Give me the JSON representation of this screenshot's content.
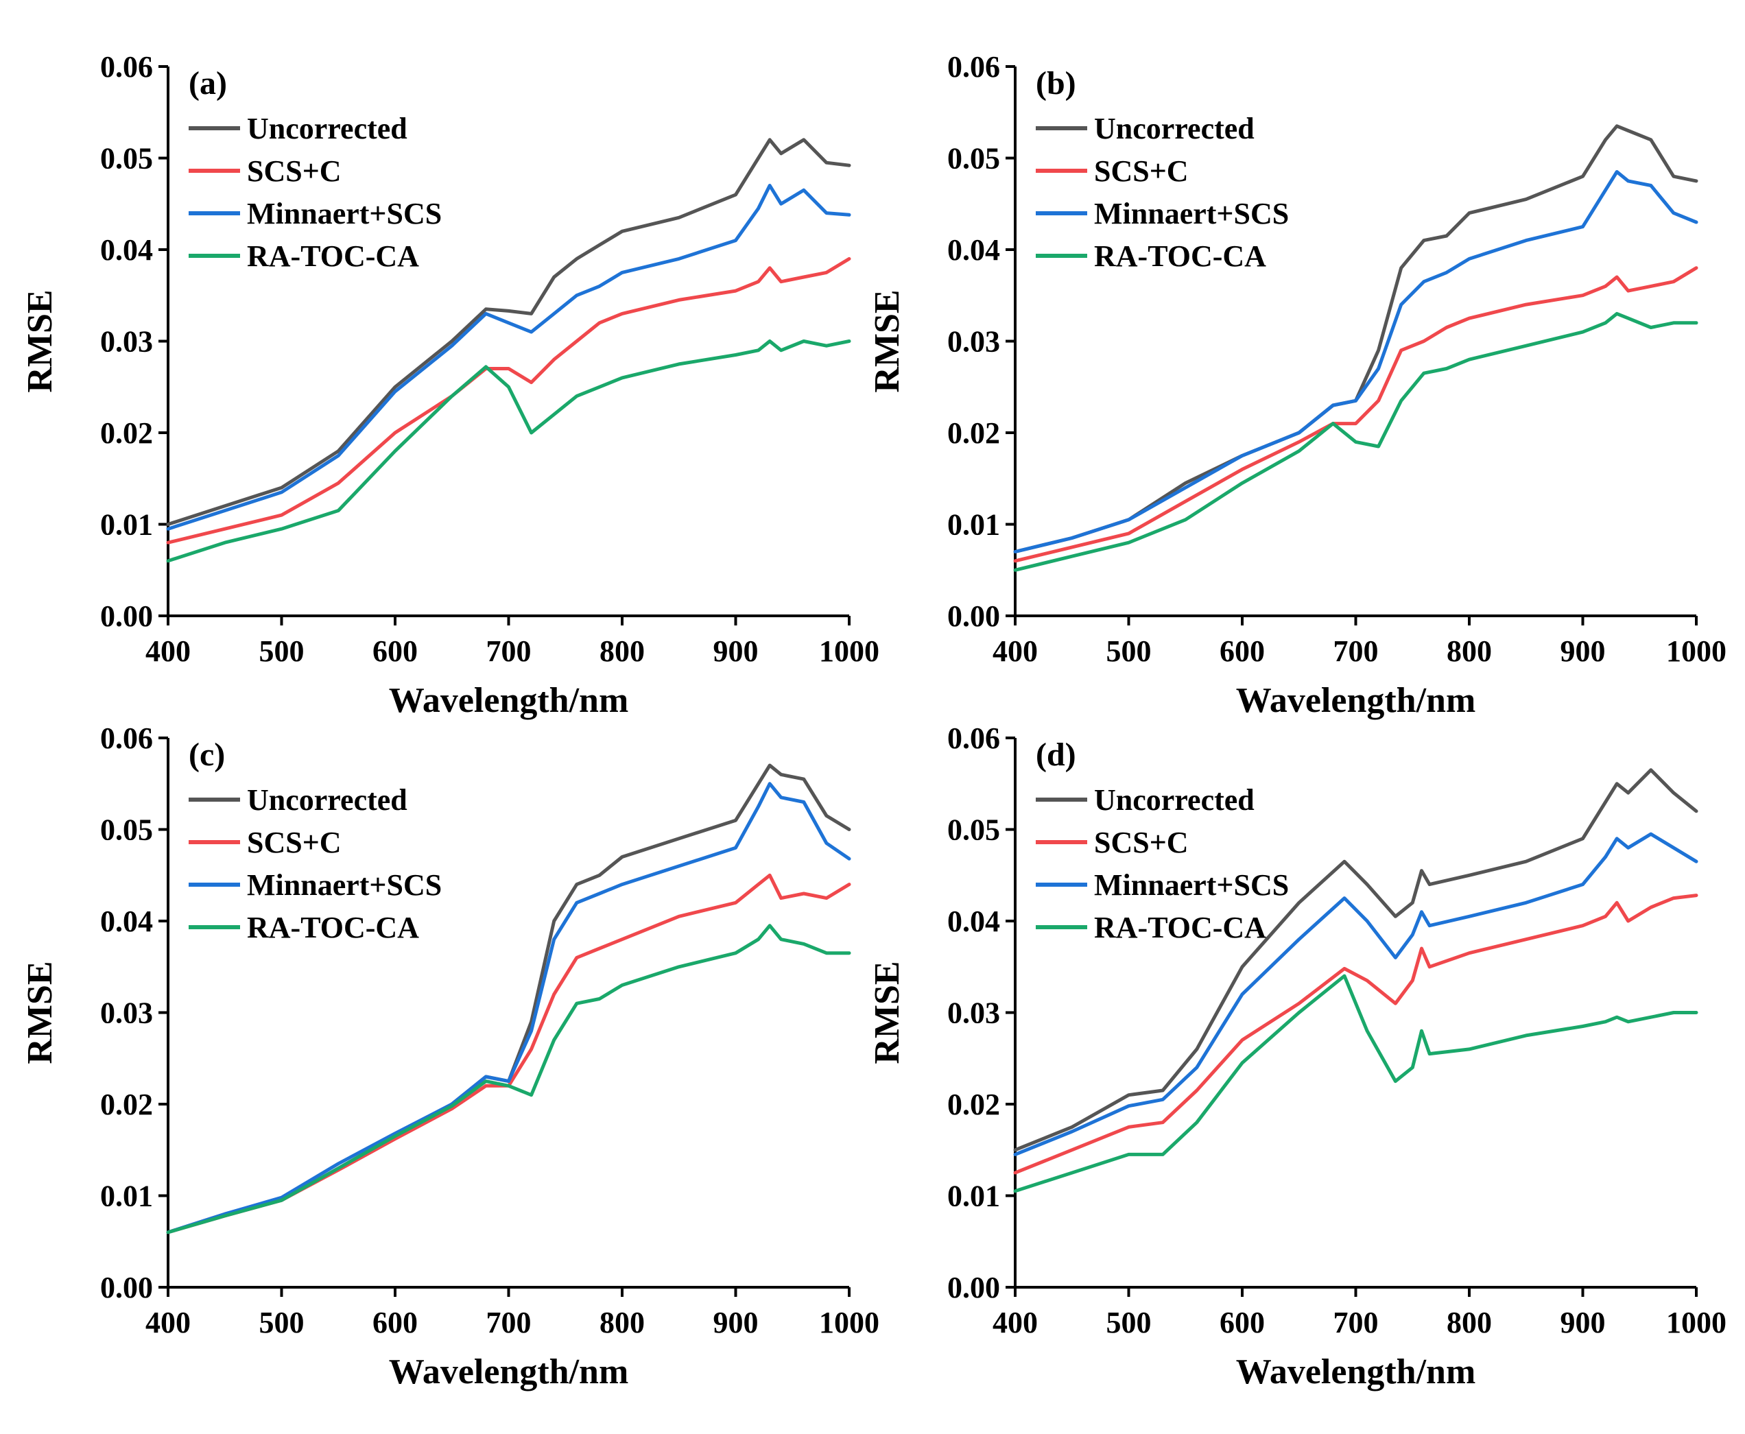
{
  "colors": {
    "Uncorrected": "#555555",
    "SCS+C": "#f0484c",
    "Minnaert+SCS": "#1e73d6",
    "RA-TOC-CA": "#1aa86a"
  },
  "chart_data": [
    {
      "panel_label": "(a)",
      "type": "line",
      "xlabel": "Wavelength/nm",
      "ylabel": "RMSE",
      "xlim": [
        400,
        1000
      ],
      "ylim": [
        0,
        0.06
      ],
      "xticks": [
        "400",
        "500",
        "600",
        "700",
        "800",
        "900",
        "1000"
      ],
      "yticks": [
        "0.00",
        "0.01",
        "0.02",
        "0.03",
        "0.04",
        "0.05",
        "0.06"
      ],
      "legend": [
        "Uncorrected",
        "SCS+C",
        "Minnaert+SCS",
        "RA-TOC-CA"
      ],
      "x": [
        400,
        450,
        500,
        550,
        600,
        650,
        680,
        700,
        720,
        740,
        760,
        780,
        800,
        850,
        900,
        920,
        930,
        940,
        960,
        980,
        1000
      ],
      "series": [
        {
          "name": "Uncorrected",
          "values": [
            0.01,
            0.012,
            0.014,
            0.018,
            0.025,
            0.03,
            0.0335,
            0.0333,
            0.033,
            0.037,
            0.039,
            0.0405,
            0.042,
            0.0435,
            0.046,
            0.05,
            0.052,
            0.0505,
            0.052,
            0.0495,
            0.0492
          ]
        },
        {
          "name": "SCS+C",
          "values": [
            0.008,
            0.0095,
            0.011,
            0.0145,
            0.02,
            0.024,
            0.027,
            0.027,
            0.0255,
            0.028,
            0.03,
            0.032,
            0.033,
            0.0345,
            0.0355,
            0.0365,
            0.038,
            0.0365,
            0.037,
            0.0375,
            0.039
          ]
        },
        {
          "name": "Minnaert+SCS",
          "values": [
            0.0095,
            0.0115,
            0.0135,
            0.0175,
            0.0245,
            0.0295,
            0.033,
            0.032,
            0.031,
            0.033,
            0.035,
            0.036,
            0.0375,
            0.039,
            0.041,
            0.0445,
            0.047,
            0.045,
            0.0465,
            0.044,
            0.0438
          ]
        },
        {
          "name": "RA-TOC-CA",
          "values": [
            0.006,
            0.008,
            0.0095,
            0.0115,
            0.018,
            0.024,
            0.0272,
            0.025,
            0.02,
            0.022,
            0.024,
            0.025,
            0.026,
            0.0275,
            0.0285,
            0.029,
            0.03,
            0.029,
            0.03,
            0.0295,
            0.03
          ]
        }
      ]
    },
    {
      "panel_label": "(b)",
      "type": "line",
      "xlabel": "Wavelength/nm",
      "ylabel": "RMSE",
      "xlim": [
        400,
        1000
      ],
      "ylim": [
        0,
        0.06
      ],
      "xticks": [
        "400",
        "500",
        "600",
        "700",
        "800",
        "900",
        "1000"
      ],
      "yticks": [
        "0.00",
        "0.01",
        "0.02",
        "0.03",
        "0.04",
        "0.05",
        "0.06"
      ],
      "legend": [
        "Uncorrected",
        "SCS+C",
        "Minnaert+SCS",
        "RA-TOC-CA"
      ],
      "x": [
        400,
        450,
        500,
        550,
        600,
        650,
        680,
        700,
        720,
        740,
        760,
        780,
        800,
        850,
        900,
        920,
        930,
        940,
        960,
        980,
        1000
      ],
      "series": [
        {
          "name": "Uncorrected",
          "values": [
            0.007,
            0.0085,
            0.0105,
            0.0145,
            0.0175,
            0.02,
            0.023,
            0.0235,
            0.029,
            0.038,
            0.041,
            0.0415,
            0.044,
            0.0455,
            0.048,
            0.052,
            0.0535,
            0.053,
            0.052,
            0.048,
            0.0475
          ]
        },
        {
          "name": "SCS+C",
          "values": [
            0.006,
            0.0075,
            0.009,
            0.0125,
            0.016,
            0.019,
            0.021,
            0.021,
            0.0235,
            0.029,
            0.03,
            0.0315,
            0.0325,
            0.034,
            0.035,
            0.036,
            0.037,
            0.0355,
            0.036,
            0.0365,
            0.038
          ]
        },
        {
          "name": "Minnaert+SCS",
          "values": [
            0.007,
            0.0085,
            0.0105,
            0.014,
            0.0175,
            0.02,
            0.023,
            0.0235,
            0.027,
            0.034,
            0.0365,
            0.0375,
            0.039,
            0.041,
            0.0425,
            0.0465,
            0.0485,
            0.0475,
            0.047,
            0.044,
            0.043
          ]
        },
        {
          "name": "RA-TOC-CA",
          "values": [
            0.005,
            0.0065,
            0.008,
            0.0105,
            0.0145,
            0.018,
            0.021,
            0.019,
            0.0185,
            0.0235,
            0.0265,
            0.027,
            0.028,
            0.0295,
            0.031,
            0.032,
            0.033,
            0.0325,
            0.0315,
            0.032,
            0.032
          ]
        }
      ]
    },
    {
      "panel_label": "(c)",
      "type": "line",
      "xlabel": "Wavelength/nm",
      "ylabel": "RMSE",
      "xlim": [
        400,
        1000
      ],
      "ylim": [
        0,
        0.06
      ],
      "xticks": [
        "400",
        "500",
        "600",
        "700",
        "800",
        "900",
        "1000"
      ],
      "yticks": [
        "0.00",
        "0.01",
        "0.02",
        "0.03",
        "0.04",
        "0.05",
        "0.06"
      ],
      "legend": [
        "Uncorrected",
        "SCS+C",
        "Minnaert+SCS",
        "RA-TOC-CA"
      ],
      "x": [
        400,
        450,
        500,
        550,
        600,
        650,
        680,
        700,
        720,
        740,
        760,
        780,
        800,
        850,
        900,
        920,
        930,
        940,
        960,
        980,
        1000
      ],
      "series": [
        {
          "name": "Uncorrected",
          "values": [
            0.006,
            0.008,
            0.0095,
            0.013,
            0.0165,
            0.02,
            0.023,
            0.0225,
            0.029,
            0.04,
            0.044,
            0.045,
            0.047,
            0.049,
            0.051,
            0.055,
            0.057,
            0.056,
            0.0555,
            0.0515,
            0.05
          ]
        },
        {
          "name": "SCS+C",
          "values": [
            0.006,
            0.0078,
            0.0095,
            0.0128,
            0.0162,
            0.0195,
            0.022,
            0.022,
            0.026,
            0.032,
            0.036,
            0.037,
            0.038,
            0.0405,
            0.042,
            0.044,
            0.045,
            0.0425,
            0.043,
            0.0425,
            0.044
          ]
        },
        {
          "name": "Minnaert+SCS",
          "values": [
            0.006,
            0.008,
            0.0098,
            0.0135,
            0.0168,
            0.02,
            0.023,
            0.0225,
            0.028,
            0.038,
            0.042,
            0.043,
            0.044,
            0.046,
            0.048,
            0.0525,
            0.055,
            0.0535,
            0.053,
            0.0485,
            0.0468
          ]
        },
        {
          "name": "RA-TOC-CA",
          "values": [
            0.006,
            0.0078,
            0.0095,
            0.013,
            0.0165,
            0.0198,
            0.0225,
            0.022,
            0.021,
            0.027,
            0.031,
            0.0315,
            0.033,
            0.035,
            0.0365,
            0.038,
            0.0395,
            0.038,
            0.0375,
            0.0365,
            0.0365
          ]
        }
      ]
    },
    {
      "panel_label": "(d)",
      "type": "line",
      "xlabel": "Wavelength/nm",
      "ylabel": "RMSE",
      "xlim": [
        400,
        1000
      ],
      "ylim": [
        0,
        0.06
      ],
      "xticks": [
        "400",
        "500",
        "600",
        "700",
        "800",
        "900",
        "1000"
      ],
      "yticks": [
        "0.00",
        "0.01",
        "0.02",
        "0.03",
        "0.04",
        "0.05",
        "0.06"
      ],
      "legend": [
        "Uncorrected",
        "SCS+C",
        "Minnaert+SCS",
        "RA-TOC-CA"
      ],
      "x": [
        400,
        450,
        500,
        530,
        560,
        600,
        650,
        690,
        710,
        735,
        750,
        758,
        765,
        800,
        850,
        900,
        920,
        930,
        940,
        960,
        980,
        1000
      ],
      "series": [
        {
          "name": "Uncorrected",
          "values": [
            0.015,
            0.0175,
            0.021,
            0.0215,
            0.026,
            0.035,
            0.042,
            0.0465,
            0.044,
            0.0405,
            0.042,
            0.0455,
            0.044,
            0.045,
            0.0465,
            0.049,
            0.053,
            0.055,
            0.054,
            0.0565,
            0.054,
            0.052
          ]
        },
        {
          "name": "SCS+C",
          "values": [
            0.0125,
            0.015,
            0.0175,
            0.018,
            0.0215,
            0.027,
            0.031,
            0.0348,
            0.0335,
            0.031,
            0.0335,
            0.037,
            0.035,
            0.0365,
            0.038,
            0.0395,
            0.0405,
            0.042,
            0.04,
            0.0415,
            0.0425,
            0.0428
          ]
        },
        {
          "name": "Minnaert+SCS",
          "values": [
            0.0145,
            0.017,
            0.0198,
            0.0205,
            0.024,
            0.032,
            0.038,
            0.0425,
            0.04,
            0.036,
            0.0385,
            0.041,
            0.0395,
            0.0405,
            0.042,
            0.044,
            0.047,
            0.049,
            0.048,
            0.0495,
            0.048,
            0.0465
          ]
        },
        {
          "name": "RA-TOC-CA",
          "values": [
            0.0105,
            0.0125,
            0.0145,
            0.0145,
            0.018,
            0.0245,
            0.03,
            0.034,
            0.028,
            0.0225,
            0.024,
            0.028,
            0.0255,
            0.026,
            0.0275,
            0.0285,
            0.029,
            0.0295,
            0.029,
            0.0295,
            0.03,
            0.03
          ]
        }
      ]
    }
  ]
}
